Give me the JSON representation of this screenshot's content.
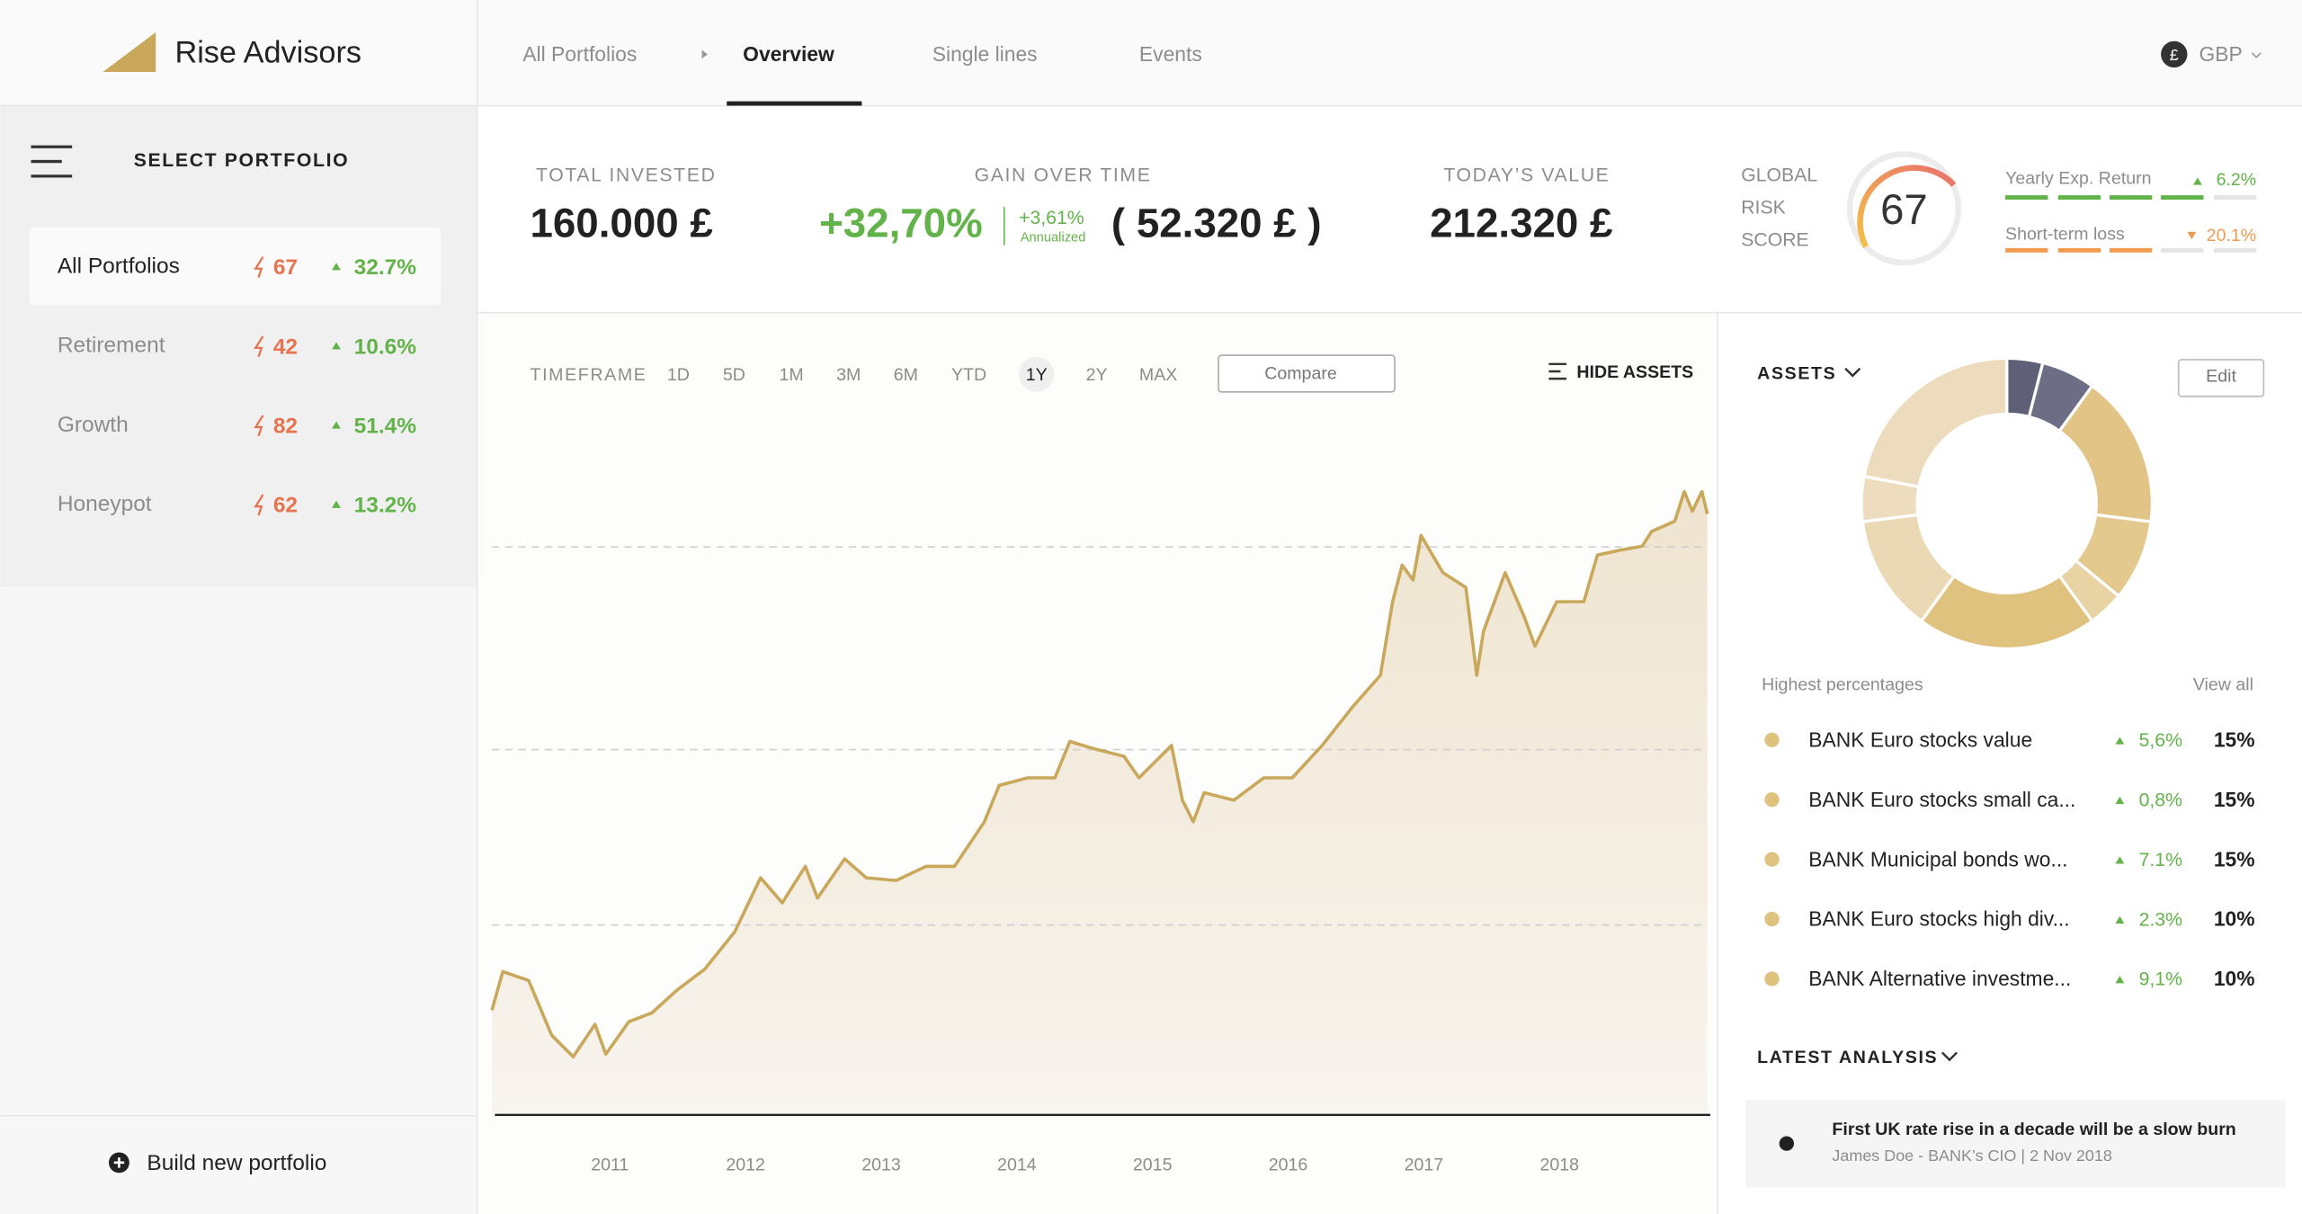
{
  "header": {
    "brand": "Rise Advisors",
    "nav": [
      "All Portfolios",
      "Overview",
      "Single lines",
      "Events"
    ],
    "currency_symbol": "£",
    "currency": "GBP"
  },
  "sidebar": {
    "title": "SELECT PORTFOLIO",
    "portfolios": [
      {
        "name": "All Portfolios",
        "risk": "67",
        "return": "32.7%"
      },
      {
        "name": "Retirement",
        "risk": "42",
        "return": "10.6%"
      },
      {
        "name": "Growth",
        "risk": "82",
        "return": "51.4%"
      },
      {
        "name": "Honeypot",
        "risk": "62",
        "return": "13.2%"
      }
    ],
    "footer": "Build new portfolio"
  },
  "kpis": {
    "total_invested_label": "TOTAL INVESTED",
    "total_invested": "160.000 £",
    "gain_label": "GAIN OVER TIME",
    "gain_pct": "+32,70%",
    "annualized_pct": "+3,61%",
    "annualized_label": "Annualized",
    "gain_amount": "( 52.320 £ )",
    "today_label": "TODAY’S VALUE",
    "today_value": "212.320 £"
  },
  "risk": {
    "label": [
      "GLOBAL",
      "RISK",
      "SCORE"
    ],
    "score": "67",
    "yearly_label": "Yearly Exp. Return",
    "yearly_value": "6.2%",
    "loss_label": "Short-term loss",
    "loss_value": "20.1%"
  },
  "toolbar": {
    "label": "TIMEFRAME",
    "ranges": [
      "1D",
      "5D",
      "1M",
      "3M",
      "6M",
      "YTD",
      "1Y",
      "2Y",
      "MAX"
    ],
    "active": 6,
    "compare": "Compare",
    "hide_assets": "HIDE ASSETS"
  },
  "chart_data": [
    {
      "type": "line",
      "x": [
        2010.13,
        2010.21,
        2010.4,
        2010.57,
        2010.73,
        2010.89,
        2010.97,
        2011.14,
        2011.31,
        2011.49,
        2011.7,
        2011.92,
        2012.11,
        2012.27,
        2012.44,
        2012.53,
        2012.73,
        2012.89,
        2013.11,
        2013.33,
        2013.54,
        2013.76,
        2013.87,
        2014.08,
        2014.28,
        2014.39,
        2014.57,
        2014.79,
        2014.9,
        2015.14,
        2015.22,
        2015.3,
        2015.38,
        2015.6,
        2015.82,
        2016.03,
        2016.25,
        2016.47,
        2016.68,
        2016.77,
        2016.84,
        2016.92,
        2016.98,
        2017.14,
        2017.31,
        2017.39,
        2017.44,
        2017.6,
        2017.74,
        2017.82,
        2017.98,
        2018.18,
        2018.28,
        2018.44,
        2018.61,
        2018.68,
        2018.85,
        2018.92,
        2018.98,
        2019.05,
        2019.09
      ],
      "values": [
        15.4,
        21.1,
        19.8,
        11.7,
        8.5,
        13.3,
        8.9,
        13.7,
        15.0,
        18.3,
        21.5,
        27.0,
        35.0,
        31.3,
        36.7,
        32.0,
        37.8,
        35.0,
        34.6,
        36.7,
        36.7,
        43.3,
        48.7,
        49.8,
        49.8,
        55.2,
        54.1,
        53.0,
        49.8,
        54.6,
        46.5,
        43.3,
        47.6,
        46.5,
        49.8,
        49.8,
        54.6,
        60.2,
        65.0,
        75.9,
        81.3,
        79.1,
        85.7,
        80.2,
        78.0,
        65.0,
        71.5,
        80.2,
        73.7,
        69.3,
        75.9,
        75.9,
        82.8,
        83.5,
        84.1,
        86.3,
        87.8,
        92.2,
        89.3,
        92.2,
        88.9
      ],
      "color": "#c9a85c",
      "xlim": [
        2010.13,
        2019.09
      ],
      "xticks": [
        2011,
        2012,
        2013,
        2014,
        2015,
        2016,
        2017,
        2018
      ],
      "ylim": [
        0,
        100
      ],
      "gridlines": [
        28,
        54,
        84
      ]
    },
    {
      "type": "donut",
      "title": "ASSETS",
      "values": [
        4,
        6,
        17,
        9,
        4,
        20,
        13,
        5,
        22
      ],
      "colors": [
        "#5f6078",
        "#6d6e86",
        "#e2c486",
        "#e4c98f",
        "#e8d3a5",
        "#e0c27f",
        "#ead9b4",
        "#eddcbd",
        "#ecdcbd"
      ]
    }
  ],
  "assets": {
    "edit": "Edit",
    "subtitle": "Highest percentages",
    "view_all": "View all",
    "rows": [
      {
        "name": "BANK Euro stocks value",
        "change": "5,6%",
        "share": "15%"
      },
      {
        "name": "BANK Euro stocks small ca...",
        "change": "0,8%",
        "share": "15%"
      },
      {
        "name": "BANK Municipal bonds wo...",
        "change": "7.1%",
        "share": "15%"
      },
      {
        "name": "BANK Euro stocks high div...",
        "change": "2.3%",
        "share": "10%"
      },
      {
        "name": "BANK Alternative investme...",
        "change": "9,1%",
        "share": "10%"
      }
    ]
  },
  "analysis": {
    "title": "LATEST ANALYSIS",
    "headline": "First UK rate rise in a decade will be a slow burn",
    "byline": "James Doe - BANK’s CIO | 2 Nov 2018"
  }
}
